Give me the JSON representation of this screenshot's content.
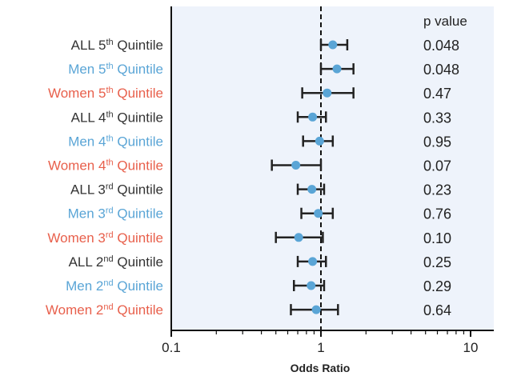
{
  "colors": {
    "all": "#333333",
    "men": "#5aa5d6",
    "women": "#e8604c",
    "panel": "#eef3fb",
    "point": "#5aa5d6",
    "bar": "#222222"
  },
  "chart_data": {
    "type": "forest",
    "xlabel": "Odds Ratio",
    "xscale": "log",
    "xlim": [
      0.1,
      15
    ],
    "xticks": [
      {
        "value": 0.1,
        "label": "0.1"
      },
      {
        "value": 1,
        "label": "1"
      },
      {
        "value": 10,
        "label": "10"
      }
    ],
    "reference_line": 1,
    "pvalue_header": "p value",
    "rows": [
      {
        "group": "all",
        "prefix": "ALL ",
        "num": "5",
        "sup": "th",
        "suffix": " Quintile",
        "or": 1.2,
        "lo": 1.0,
        "hi": 1.5,
        "p": "0.048"
      },
      {
        "group": "men",
        "prefix": "Men ",
        "num": "5",
        "sup": "th",
        "suffix": " Quintile",
        "or": 1.28,
        "lo": 1.0,
        "hi": 1.65,
        "p": "0.048"
      },
      {
        "group": "women",
        "prefix": "Women ",
        "num": "5",
        "sup": "th",
        "suffix": " Quintile",
        "or": 1.1,
        "lo": 0.75,
        "hi": 1.65,
        "p": "0.47"
      },
      {
        "group": "all",
        "prefix": "ALL ",
        "num": "4",
        "sup": "th",
        "suffix": " Quintile",
        "or": 0.88,
        "lo": 0.7,
        "hi": 1.08,
        "p": "0.33"
      },
      {
        "group": "men",
        "prefix": "Men ",
        "num": "4",
        "sup": "th",
        "suffix": " Quintile",
        "or": 0.98,
        "lo": 0.76,
        "hi": 1.2,
        "p": "0.95"
      },
      {
        "group": "women",
        "prefix": "Women ",
        "num": "4",
        "sup": "th",
        "suffix": " Quintile",
        "or": 0.68,
        "lo": 0.47,
        "hi": 1.0,
        "p": "0.07"
      },
      {
        "group": "all",
        "prefix": "ALL ",
        "num": "3",
        "sup": "rd",
        "suffix": " Quintile",
        "or": 0.87,
        "lo": 0.7,
        "hi": 1.05,
        "p": "0.23"
      },
      {
        "group": "men",
        "prefix": "Men ",
        "num": "3",
        "sup": "rd",
        "suffix": " Quintile",
        "or": 0.96,
        "lo": 0.74,
        "hi": 1.2,
        "p": "0.76"
      },
      {
        "group": "women",
        "prefix": "Women ",
        "num": "3",
        "sup": "rd",
        "suffix": " Quintile",
        "or": 0.71,
        "lo": 0.5,
        "hi": 1.03,
        "p": "0.10"
      },
      {
        "group": "all",
        "prefix": "ALL ",
        "num": "2",
        "sup": "nd",
        "suffix": " Quintile",
        "or": 0.88,
        "lo": 0.7,
        "hi": 1.08,
        "p": "0.25"
      },
      {
        "group": "men",
        "prefix": "Men ",
        "num": "2",
        "sup": "nd",
        "suffix": " Quintile",
        "or": 0.86,
        "lo": 0.66,
        "hi": 1.05,
        "p": "0.29"
      },
      {
        "group": "women",
        "prefix": "Women ",
        "num": "2",
        "sup": "nd",
        "suffix": " Quintile",
        "or": 0.93,
        "lo": 0.63,
        "hi": 1.3,
        "p": "0.64"
      }
    ]
  }
}
